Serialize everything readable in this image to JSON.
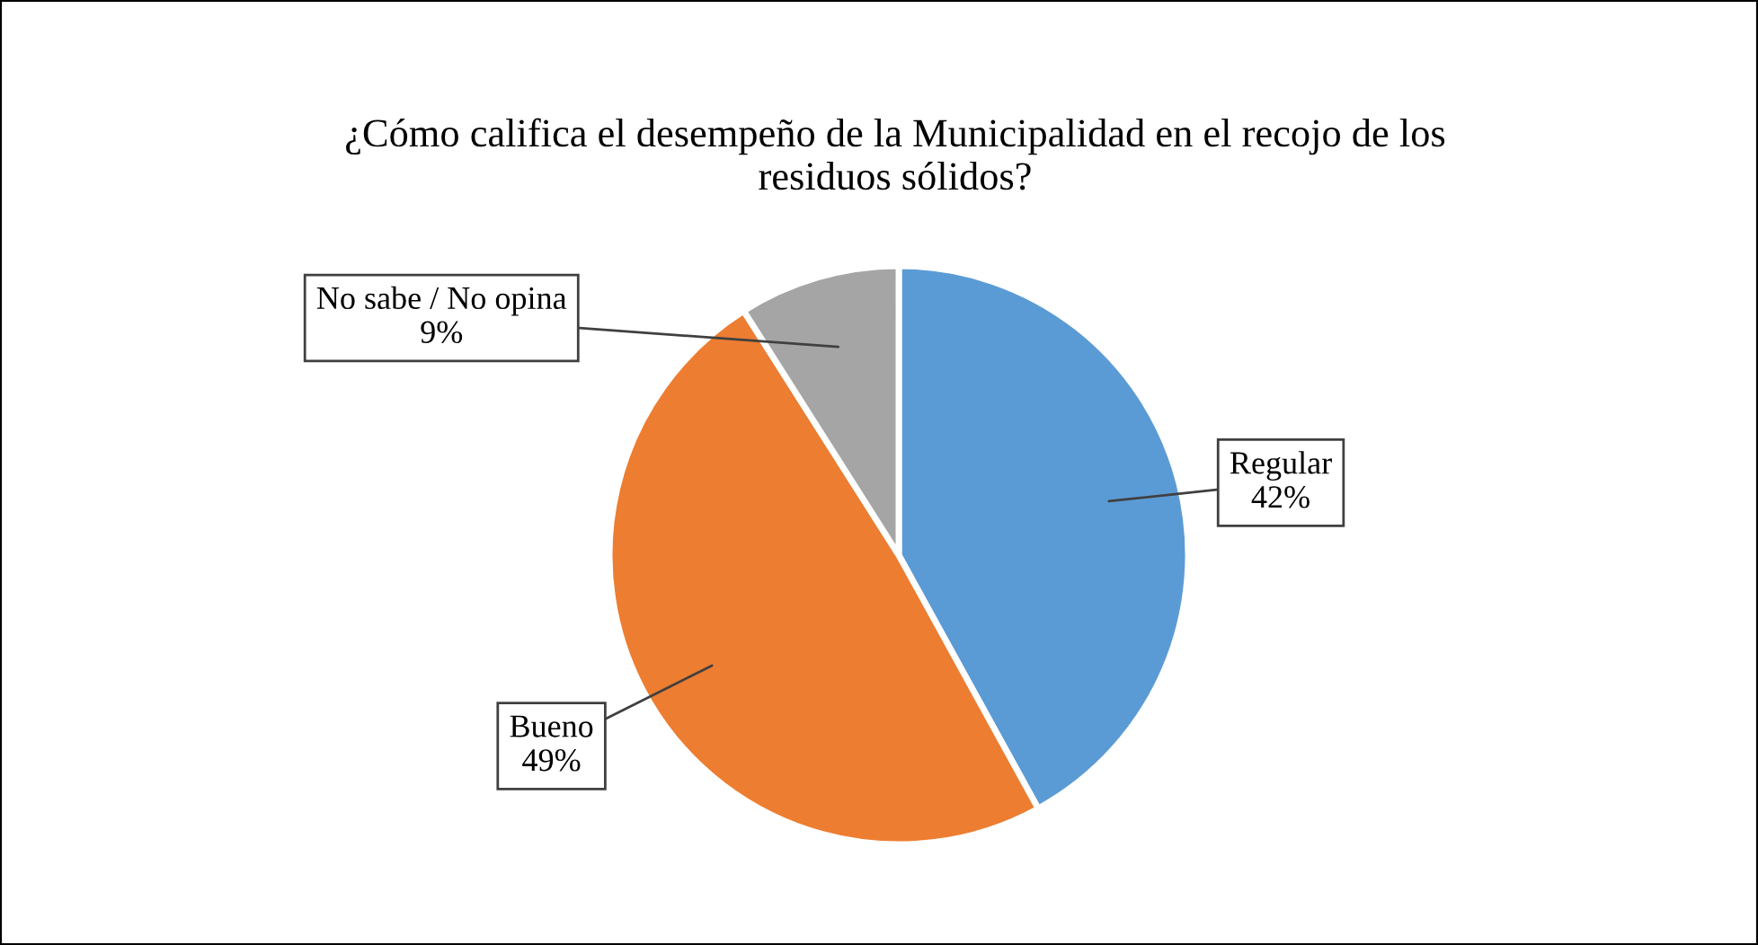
{
  "chart_data": {
    "type": "pie",
    "title": "¿Cómo califica el desempeño de la Municipalidad en el recojo de los\nresiduos sólidos?",
    "categories": [
      "Regular",
      "Bueno",
      "No sabe / No opina"
    ],
    "values": [
      42,
      49,
      9
    ],
    "value_labels": [
      "42%",
      "49%",
      "9%"
    ],
    "colors": [
      "#5b9bd5",
      "#ed7d31",
      "#a5a5a5"
    ],
    "legend": false
  }
}
